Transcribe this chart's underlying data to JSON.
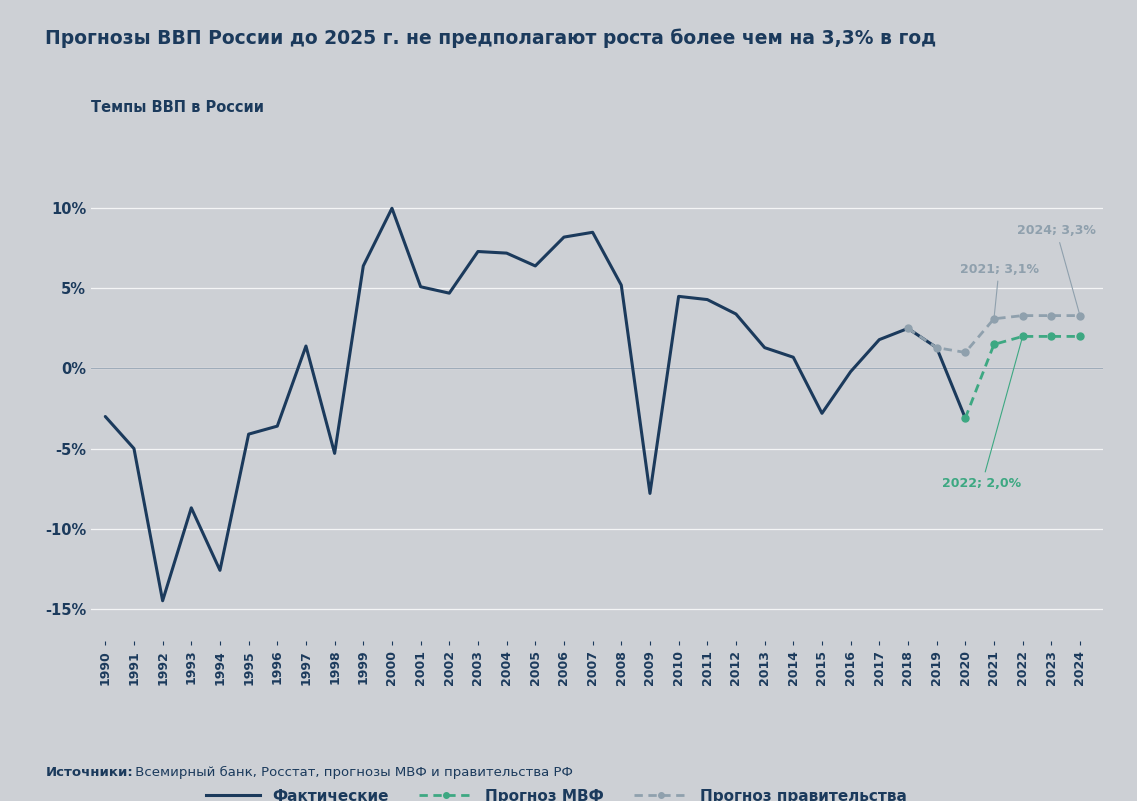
{
  "title": "Прогнозы ВВП России до 2025 г. не предполагают роста более чем на 3,3% в год",
  "subtitle": "Темпы ВВП в России",
  "background_color": "#cdd0d5",
  "actual_color": "#1b3a5c",
  "imf_color": "#3da882",
  "gov_color": "#8fa0ad",
  "source_bold": "Источники:",
  "source_rest": " Всемирный банк, Росстат, прогнозы МВФ и правительства РФ",
  "legend_actual": "Фактические",
  "legend_imf": "Прогноз МВФ",
  "legend_gov": "Прогноз правительства",
  "actual_years": [
    1990,
    1991,
    1992,
    1993,
    1994,
    1995,
    1996,
    1997,
    1998,
    1999,
    2000,
    2001,
    2002,
    2003,
    2004,
    2005,
    2006,
    2007,
    2008,
    2009,
    2010,
    2011,
    2012,
    2013,
    2014,
    2015,
    2016,
    2017,
    2018,
    2019,
    2020
  ],
  "actual_values": [
    -3.0,
    -5.0,
    -14.5,
    -8.7,
    -12.6,
    -4.1,
    -3.6,
    1.4,
    -5.3,
    6.4,
    10.0,
    5.1,
    4.7,
    7.3,
    7.2,
    6.4,
    8.2,
    8.5,
    5.2,
    -7.8,
    4.5,
    4.3,
    3.4,
    1.3,
    0.7,
    -2.8,
    -0.2,
    1.8,
    2.5,
    1.3,
    -3.1
  ],
  "imf_years": [
    2020,
    2021,
    2022,
    2023,
    2024
  ],
  "imf_values": [
    -3.1,
    1.5,
    2.0,
    2.0,
    2.0
  ],
  "gov_years": [
    2018,
    2019,
    2020,
    2021,
    2022,
    2023,
    2024
  ],
  "gov_values": [
    2.5,
    1.3,
    1.0,
    3.1,
    3.3,
    3.3,
    3.3
  ],
  "ylim": [
    -17,
    12
  ],
  "yticks": [
    -15,
    -10,
    -5,
    0,
    5,
    10
  ],
  "ytick_labels": [
    "-15%",
    "-10%",
    "-5%",
    "0%",
    "5%",
    "10%"
  ],
  "grid_color": "#bbbfc5",
  "zero_line_color": "#8a9aaa"
}
